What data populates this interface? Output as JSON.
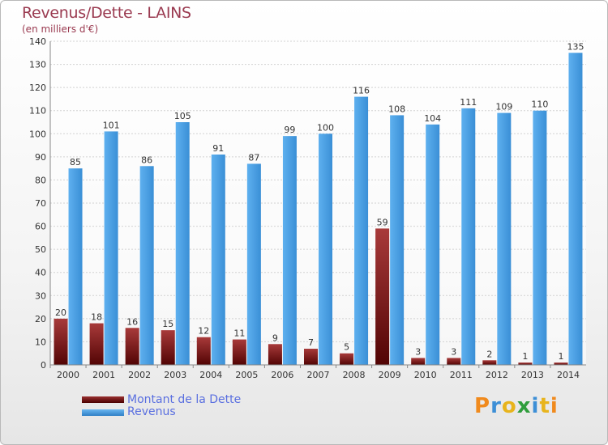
{
  "chart_data": {
    "type": "bar",
    "title": "Revenus/Dette - LAINS",
    "subtitle": "(en milliers d'€)",
    "categories": [
      "2000",
      "2001",
      "2002",
      "2003",
      "2004",
      "2005",
      "2006",
      "2007",
      "2008",
      "2009",
      "2010",
      "2011",
      "2012",
      "2013",
      "2014"
    ],
    "series": [
      {
        "name": "Montant de la Dette",
        "color": "#7a1414",
        "values": [
          20,
          18,
          16,
          15,
          12,
          11,
          9,
          7,
          5,
          59,
          3,
          3,
          2,
          1,
          1
        ]
      },
      {
        "name": "Revenus",
        "color": "#3d95dc",
        "values": [
          85,
          101,
          86,
          105,
          91,
          87,
          99,
          100,
          116,
          108,
          104,
          111,
          109,
          110,
          135
        ]
      }
    ],
    "ylim": [
      0,
      140
    ],
    "yticks": [
      0,
      10,
      20,
      30,
      40,
      50,
      60,
      70,
      80,
      90,
      100,
      110,
      120,
      130,
      140
    ],
    "grid": true,
    "legend_position": "bottom-left"
  },
  "logo": {
    "text": "Proxiti",
    "letter_colors": [
      "#f08a1d",
      "#3d8fd6",
      "#e8b41c",
      "#2f9d3c",
      "#3d8fd6",
      "#e8b41c",
      "#f08a1d"
    ]
  }
}
